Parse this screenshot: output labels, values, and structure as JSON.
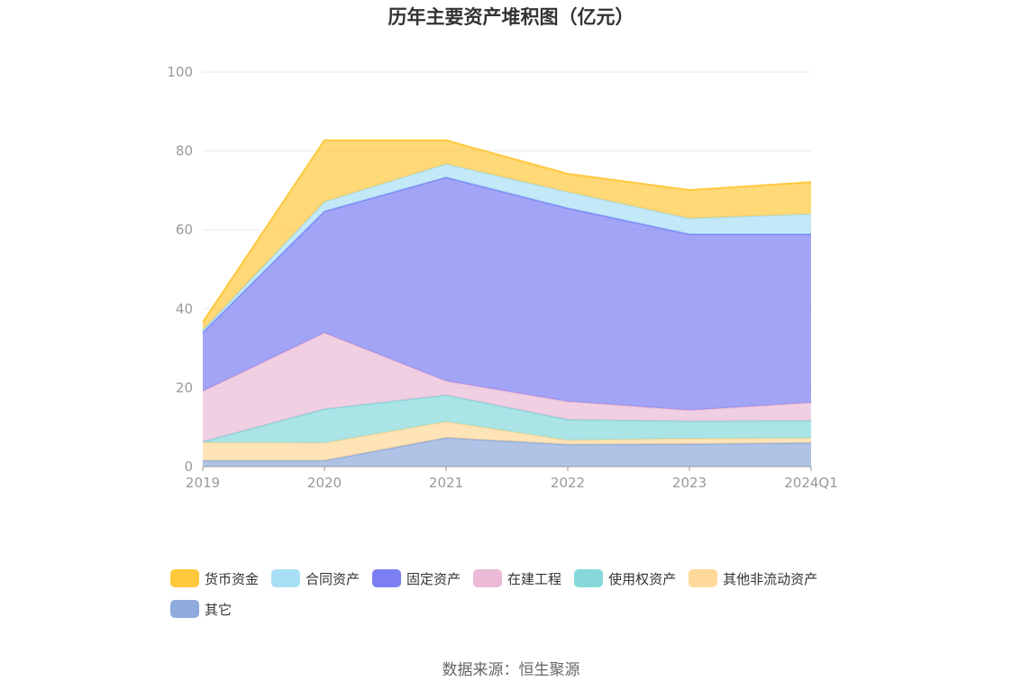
{
  "chart_data": {
    "type": "area",
    "stacked": true,
    "title": "历年主要资产堆积图（亿元）",
    "x": [
      "2019",
      "2020",
      "2021",
      "2022",
      "2023",
      "2024Q1"
    ],
    "yticks": [
      "0",
      "20",
      "40",
      "60",
      "80",
      "100"
    ],
    "ylim": [
      0,
      100
    ],
    "grid": true,
    "legend_position": "bottom",
    "series": [
      {
        "name": "其它",
        "color": "#8FAADC",
        "values": [
          1.5,
          1.5,
          7.3,
          5.6,
          5.7,
          6.0
        ]
      },
      {
        "name": "其他非流动资产",
        "color": "#FFD99A",
        "values": [
          4.6,
          4.5,
          4.1,
          1.1,
          1.4,
          1.2
        ]
      },
      {
        "name": "使用权资产",
        "color": "#86D8DB",
        "values": [
          0.2,
          8.6,
          6.7,
          5.2,
          4.4,
          4.4
        ]
      },
      {
        "name": "在建工程",
        "color": "#EBBAD6",
        "values": [
          12.8,
          19.3,
          3.6,
          4.6,
          2.8,
          4.6
        ]
      },
      {
        "name": "固定资产",
        "color": "#7B7FF2",
        "values": [
          14.9,
          30.8,
          51.6,
          49.0,
          44.6,
          42.7
        ]
      },
      {
        "name": "合同资产",
        "color": "#A9DFF6",
        "values": [
          0.6,
          2.4,
          3.4,
          4.1,
          4.0,
          5.1
        ]
      },
      {
        "name": "货币资金",
        "color": "#FFC83D",
        "values": [
          2.0,
          15.6,
          6.0,
          4.6,
          7.2,
          8.1
        ]
      }
    ]
  },
  "source": "数据来源：恒生聚源"
}
